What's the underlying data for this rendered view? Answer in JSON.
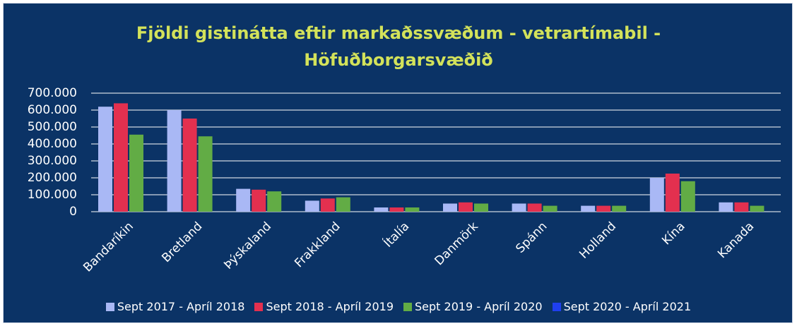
{
  "chart_data": {
    "type": "bar",
    "title": [
      "Fjöldi gistinátta eftir markaðssvæðum - vetrartímabil -",
      "Höfuðborgarsvæðið"
    ],
    "categories": [
      "Bandaríkin",
      "Bretland",
      "Þýskaland",
      "Frakkland",
      "Ítalía",
      "Danmörk",
      "Spánn",
      "Holland",
      "Kína",
      "Kanada"
    ],
    "series": [
      {
        "name": "Sept 2017 - Apríl 2018",
        "color": "#a9b8f5",
        "values": [
          620000,
          600000,
          135000,
          65000,
          25000,
          48000,
          48000,
          35000,
          200000,
          55000
        ]
      },
      {
        "name": "Sept 2018 - Apríl 2019",
        "color": "#e3304f",
        "values": [
          640000,
          550000,
          130000,
          78000,
          25000,
          55000,
          48000,
          35000,
          225000,
          55000
        ]
      },
      {
        "name": "Sept 2019 - Apríl 2020",
        "color": "#62ac45",
        "values": [
          455000,
          445000,
          120000,
          85000,
          25000,
          48000,
          35000,
          35000,
          180000,
          35000
        ]
      },
      {
        "name": "Sept 2020 - Apríl 2021",
        "color": "#1f3ff0",
        "values": [
          0,
          0,
          0,
          0,
          0,
          0,
          0,
          0,
          0,
          0
        ]
      }
    ],
    "ylim": [
      0,
      700000
    ],
    "yticks": [
      0,
      {
        "value": 100000,
        "label": "100.000"
      },
      {
        "value": 200000,
        "label": "200.000"
      },
      {
        "value": 300000,
        "label": "300.000"
      },
      {
        "value": 400000,
        "label": "400.000"
      },
      {
        "value": 500000,
        "label": "500.000"
      },
      {
        "value": 600000,
        "label": "600.000"
      },
      {
        "value": 700000,
        "label": "700.000"
      }
    ],
    "grid": true
  }
}
